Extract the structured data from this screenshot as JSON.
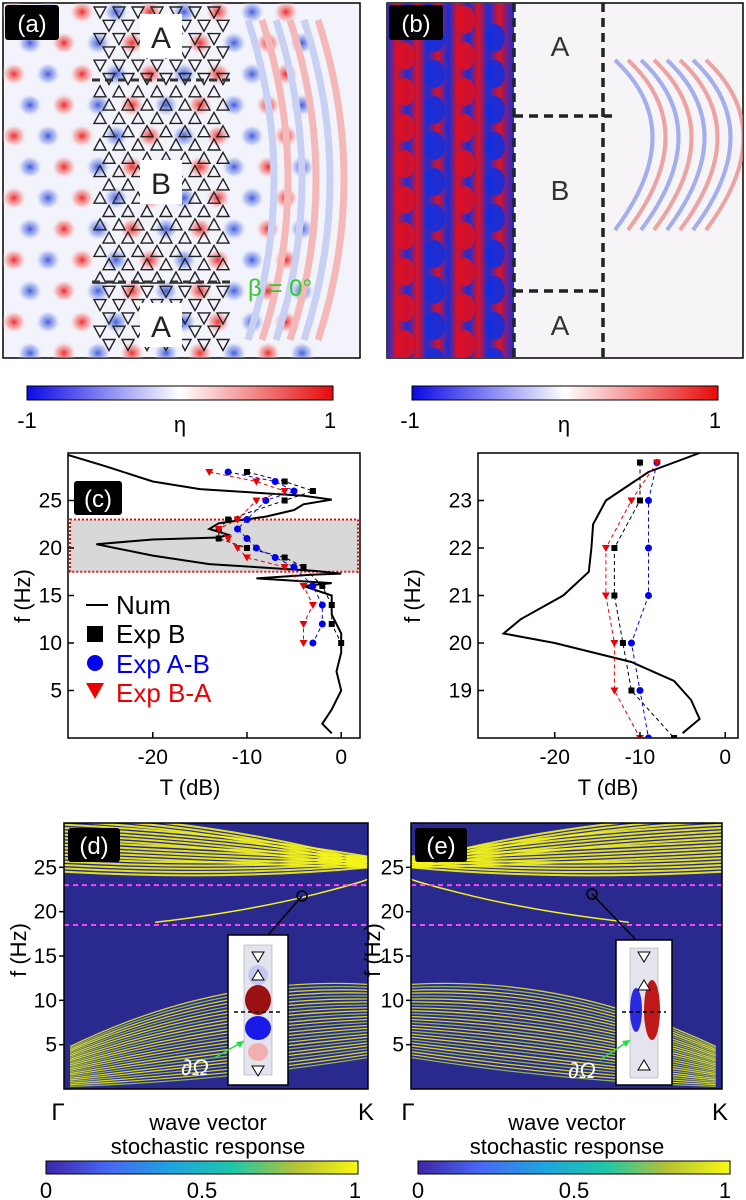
{
  "panels": {
    "a": {
      "tag": "(a)",
      "region_labels": [
        "A",
        "B",
        "A"
      ],
      "angle_label": "β = 0°",
      "colorbar": {
        "min": "-1",
        "max": "1",
        "label": "η"
      }
    },
    "b": {
      "tag": "(b)",
      "region_labels": [
        "A",
        "B",
        "A"
      ],
      "colorbar": {
        "min": "-1",
        "max": "1",
        "label": "η"
      }
    },
    "d": {
      "tag": "(d)",
      "boundary_label": "∂Ω",
      "x_start": "Γ",
      "x_end": "K",
      "xlabel_line1": "wave vector",
      "xlabel_line2": "stochastic response",
      "colorbar": {
        "min": "0",
        "mid": "0.5",
        "max": "1"
      }
    },
    "e": {
      "tag": "(e)",
      "boundary_label": "∂Ω",
      "x_start": "Γ",
      "x_end": "K",
      "xlabel_line1": "wave vector",
      "xlabel_line2": "stochastic response",
      "colorbar": {
        "min": "0",
        "mid": "0.5",
        "max": "1"
      }
    }
  },
  "chart_data": [
    {
      "panel": "(c)",
      "type": "line",
      "xlabel": "T (dB)",
      "ylabel": "f (Hz)",
      "xlim": [
        -29,
        2
      ],
      "ylim": [
        0,
        30
      ],
      "xticks": [
        -20,
        -10,
        0
      ],
      "yticks": [
        5,
        10,
        15,
        20,
        25
      ],
      "highlight_band": [
        17.5,
        23
      ],
      "legend": [
        "Num",
        "Exp B",
        "Exp A-B",
        "Exp B-A"
      ],
      "legend_position": "left",
      "series": [
        {
          "name": "Num",
          "color": "#000000",
          "points": [
            [
              -1,
              0.5
            ],
            [
              -2,
              1.5
            ],
            [
              -1,
              3
            ],
            [
              0,
              5
            ],
            [
              -0.5,
              7
            ],
            [
              0,
              9
            ],
            [
              0,
              11
            ],
            [
              -1,
              13
            ],
            [
              -1,
              15
            ],
            [
              -4,
              16
            ],
            [
              -1,
              16.3
            ],
            [
              -9,
              16.8
            ],
            [
              -3,
              17.2
            ],
            [
              0,
              17.3
            ],
            [
              -3,
              17.6
            ],
            [
              -14,
              18.3
            ],
            [
              -20,
              19.2
            ],
            [
              -26,
              20.4
            ],
            [
              -20,
              20.9
            ],
            [
              -13,
              21.1
            ],
            [
              -12,
              21.4
            ],
            [
              -14,
              22
            ],
            [
              -13,
              22.6
            ],
            [
              -8,
              23.3
            ],
            [
              -5,
              24
            ],
            [
              -4,
              24.6
            ],
            [
              -1,
              25.1
            ],
            [
              -4,
              25.5
            ],
            [
              -15,
              26.2
            ],
            [
              -20,
              27
            ],
            [
              -25,
              28.6
            ],
            [
              -29,
              29.8
            ]
          ]
        },
        {
          "name": "Exp B",
          "color": "#000000",
          "marker": "square",
          "points": [
            [
              -10,
              28
            ],
            [
              -6,
              27
            ],
            [
              -3,
              26
            ],
            [
              -6,
              25
            ],
            [
              -12,
              23
            ],
            [
              -13,
              22
            ],
            [
              -13,
              21
            ],
            [
              -10,
              20
            ],
            [
              -6,
              19
            ],
            [
              -4,
              18
            ],
            [
              -2,
              16
            ],
            [
              -1,
              14
            ],
            [
              -1,
              12
            ],
            [
              0,
              10
            ]
          ]
        },
        {
          "name": "Exp A-B",
          "color": "#0000ee",
          "marker": "circle",
          "points": [
            [
              -12,
              28
            ],
            [
              -7,
              27
            ],
            [
              -5,
              26
            ],
            [
              -8,
              25
            ],
            [
              -10,
              23
            ],
            [
              -11,
              22
            ],
            [
              -10,
              21
            ],
            [
              -9,
              20
            ],
            [
              -7,
              19
            ],
            [
              -5,
              18
            ],
            [
              -3,
              16
            ],
            [
              -2,
              14
            ],
            [
              -2,
              12
            ],
            [
              -3,
              10
            ]
          ]
        },
        {
          "name": "Exp B-A",
          "color": "#ee0000",
          "marker": "triangle-down",
          "points": [
            [
              -14,
              28
            ],
            [
              -9,
              27
            ],
            [
              -6,
              26
            ],
            [
              -9,
              25
            ],
            [
              -11,
              23
            ],
            [
              -13,
              22
            ],
            [
              -12,
              21
            ],
            [
              -11,
              20
            ],
            [
              -10,
              19
            ],
            [
              -6,
              18
            ],
            [
              -4,
              16
            ],
            [
              -3,
              14
            ],
            [
              -4,
              12
            ],
            [
              -4,
              10
            ]
          ]
        }
      ]
    },
    {
      "panel": "zoom",
      "type": "line",
      "xlabel": "T (dB)",
      "ylabel": "f (Hz)",
      "xlim": [
        -29,
        1.5
      ],
      "ylim": [
        18,
        24
      ],
      "xticks": [
        -20,
        -10,
        0
      ],
      "yticks": [
        19,
        20,
        21,
        22,
        23
      ],
      "series": [
        {
          "name": "Num",
          "color": "#000000",
          "points": [
            [
              -3,
              24
            ],
            [
              -9,
              23.6
            ],
            [
              -14,
              23
            ],
            [
              -15.5,
              22.5
            ],
            [
              -15.7,
              22
            ],
            [
              -16,
              21.5
            ],
            [
              -19,
              21
            ],
            [
              -24,
              20.5
            ],
            [
              -26,
              20.2
            ],
            [
              -20,
              20
            ],
            [
              -11,
              19.6
            ],
            [
              -6,
              19.2
            ],
            [
              -4,
              18.8
            ],
            [
              -3,
              18.4
            ],
            [
              -5,
              18.1
            ]
          ]
        },
        {
          "name": "Exp B",
          "color": "#000000",
          "marker": "square",
          "points": [
            [
              -10,
              23.8
            ],
            [
              -10,
              23
            ],
            [
              -13,
              22
            ],
            [
              -13,
              21
            ],
            [
              -12,
              20
            ],
            [
              -11,
              19
            ],
            [
              -6,
              18
            ]
          ]
        },
        {
          "name": "Exp A-B",
          "color": "#0000ee",
          "marker": "circle",
          "points": [
            [
              -8,
              23.8
            ],
            [
              -9,
              23
            ],
            [
              -9,
              22
            ],
            [
              -9,
              21
            ],
            [
              -11,
              20
            ],
            [
              -10,
              19
            ],
            [
              -9,
              18
            ]
          ]
        },
        {
          "name": "Exp B-A",
          "color": "#ee0000",
          "marker": "triangle-down",
          "points": [
            [
              -8,
              23.8
            ],
            [
              -11,
              23
            ],
            [
              -14,
              22
            ],
            [
              -14,
              21
            ],
            [
              -13,
              20
            ],
            [
              -13,
              19
            ],
            [
              -10,
              18
            ]
          ]
        }
      ]
    },
    {
      "panel": "(d)",
      "type": "heatmap",
      "xlabel": "wave vector",
      "ylabel": "f (Hz)",
      "ylim": [
        0,
        30
      ],
      "yticks": [
        5,
        10,
        15,
        20,
        25
      ],
      "guide_lines": [
        18.5,
        23
      ],
      "colorbar_range": [
        0,
        1
      ],
      "marked_point": {
        "x_frac": 0.83,
        "f": 22
      }
    },
    {
      "panel": "(e)",
      "type": "heatmap",
      "xlabel": "wave vector",
      "ylabel": "f (Hz)",
      "ylim": [
        0,
        30
      ],
      "yticks": [
        5,
        10,
        15,
        20,
        25
      ],
      "guide_lines": [
        18.5,
        23
      ],
      "colorbar_range": [
        0,
        1
      ],
      "marked_point": {
        "x_frac": 0.55,
        "f": 22.5
      }
    }
  ]
}
